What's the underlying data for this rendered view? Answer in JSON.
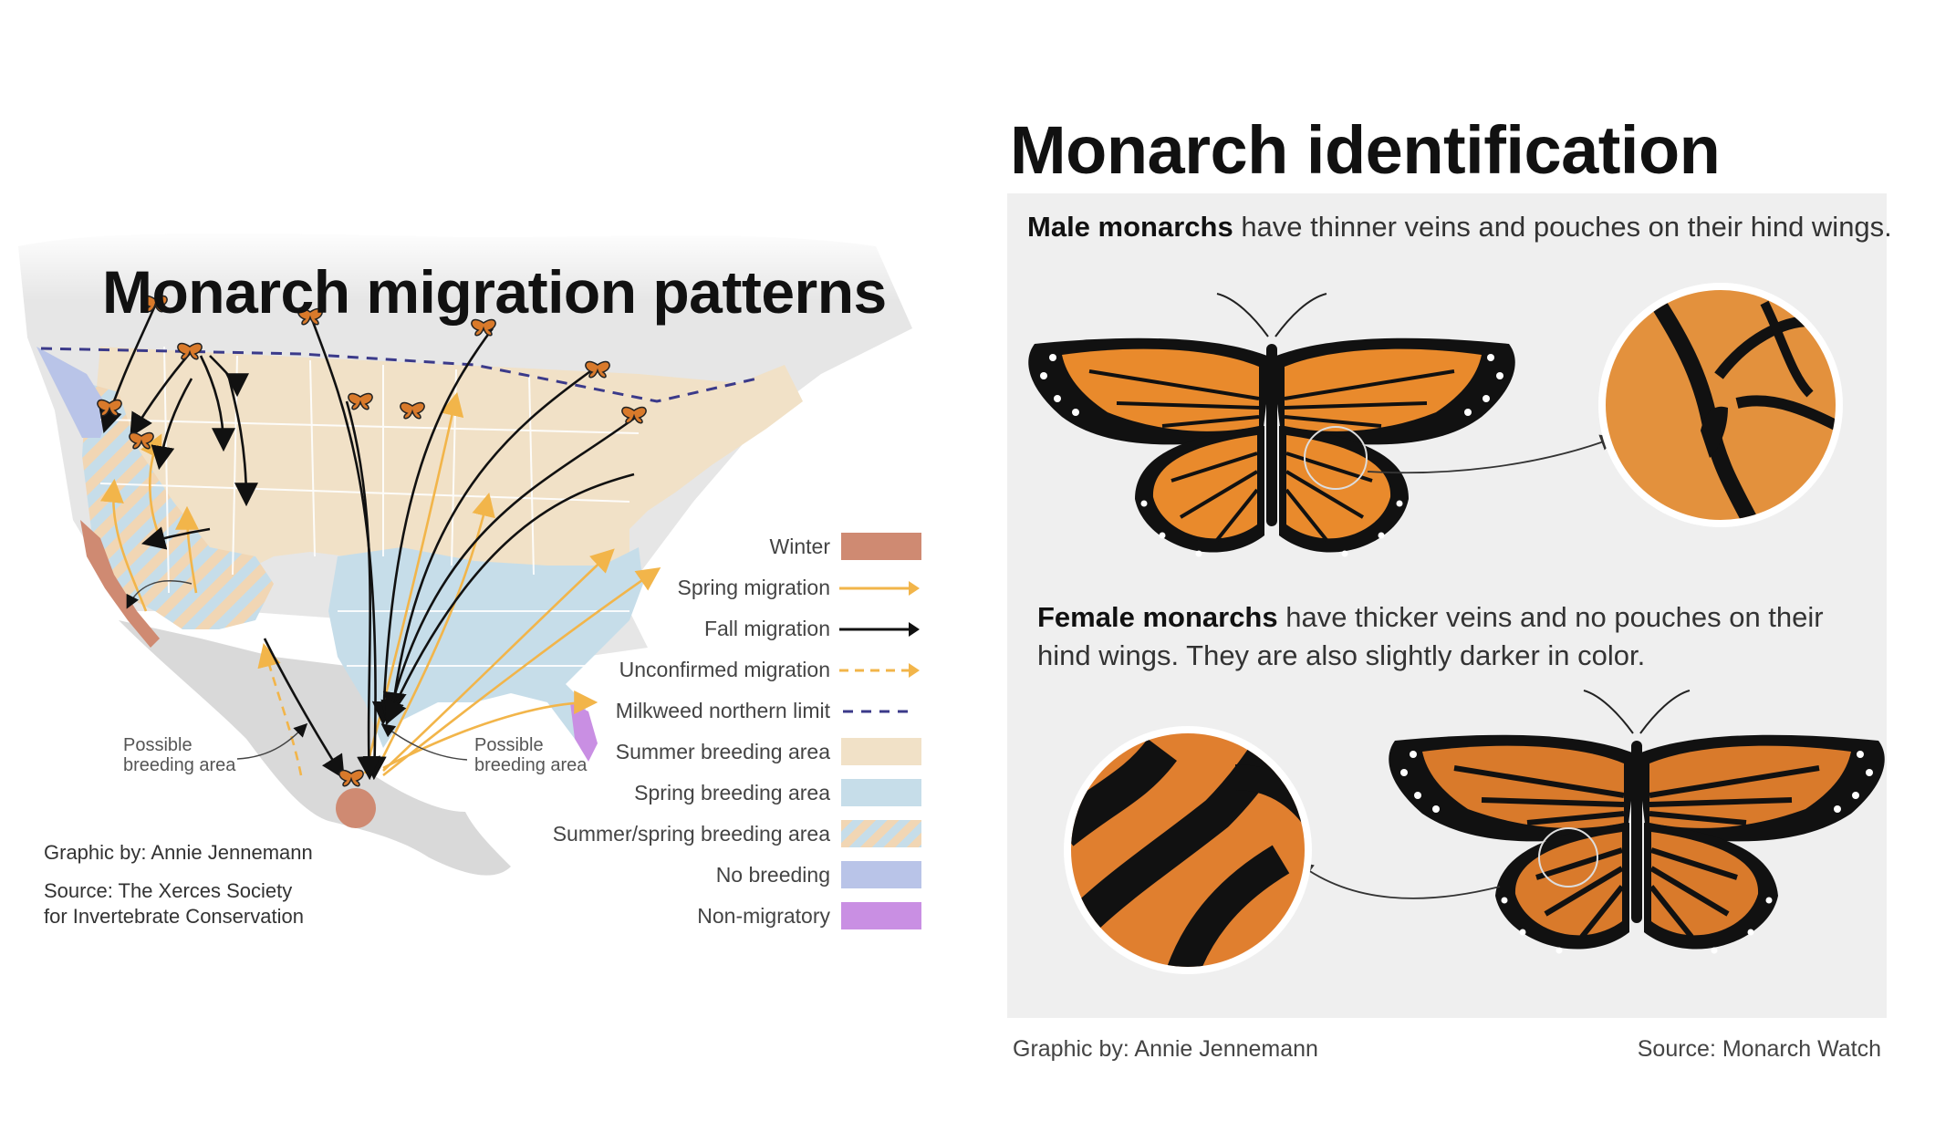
{
  "map": {
    "title": "Monarch migration patterns",
    "legend": [
      {
        "label": "Winter",
        "kind": "swatch",
        "color": "#cf8a72"
      },
      {
        "label": "Spring migration",
        "kind": "arrow",
        "color": "#f2b54a"
      },
      {
        "label": "Fall migration",
        "kind": "arrow",
        "color": "#111111"
      },
      {
        "label": "Unconfirmed migration",
        "kind": "dashed-arrow",
        "color": "#f2b54a"
      },
      {
        "label": "Milkweed northern limit",
        "kind": "dashed-line",
        "color": "#3b3a8a"
      },
      {
        "label": "Summer breeding area",
        "kind": "swatch",
        "color": "#f1e1c7"
      },
      {
        "label": "Spring breeding area",
        "kind": "swatch",
        "color": "#c6dde9"
      },
      {
        "label": "Summer/spring breeding area",
        "kind": "striped",
        "color": "#f1d6b4"
      },
      {
        "label": "No breeding",
        "kind": "swatch",
        "color": "#b9c4e8"
      },
      {
        "label": "Non-migratory",
        "kind": "swatch",
        "color": "#c98fe3"
      }
    ],
    "callout_left": [
      "Possible",
      "breeding area"
    ],
    "callout_right": [
      "Possible",
      "breeding area"
    ],
    "credit": "Graphic by: Annie Jennemann",
    "source_line1": "Source: The Xerces Society",
    "source_line2": "for Invertebrate Conservation"
  },
  "identification": {
    "title": "Monarch identification",
    "male_lead": "Male monarchs",
    "male_text": " have thinner veins and pouches on their hind wings.",
    "female_lead": "Female monarchs",
    "female_text": " have thicker veins and no pouches on their hind wings. They are also slightly darker in color.",
    "credit": "Graphic by: Annie Jennemann",
    "source": "Source: Monarch Watch"
  },
  "colors": {
    "panel_bg": "#efefef",
    "wing_orange": "#e98a2c",
    "wing_black": "#111111",
    "winter": "#cf8a72",
    "spring_arrow": "#f2b54a"
  },
  "icons": [
    "butterfly-icon",
    "magnifier-circle"
  ]
}
